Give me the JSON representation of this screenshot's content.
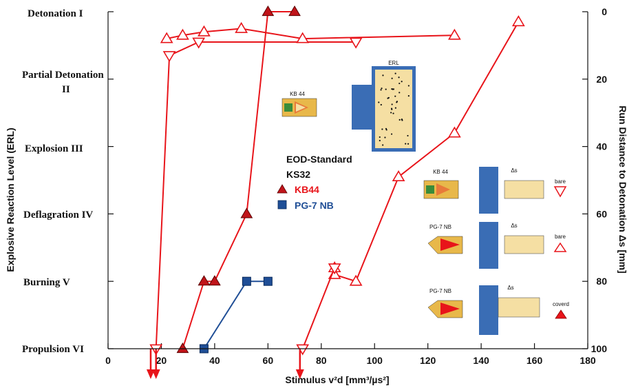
{
  "chart_data": {
    "type": "line",
    "title": "",
    "xlabel": "Stimulus v²d [mm³/µs²]",
    "ylabel_left": "Explosive Reaction Level (ERL)",
    "ylabel_right": "Run Distance to Detonation Δs [mm]",
    "xlim": [
      0,
      180
    ],
    "x_ticks": [
      0,
      20,
      40,
      60,
      80,
      100,
      120,
      140,
      160,
      180
    ],
    "ylim_right": [
      0,
      100
    ],
    "y_right_ticks": [
      0,
      20,
      40,
      60,
      80,
      100
    ],
    "y_right_inverted": true,
    "reaction_levels": [
      {
        "name": "Detonation",
        "roman": "I",
        "run_distance": 0
      },
      {
        "name": "Partial Detonation",
        "roman": "II",
        "run_distance": 20
      },
      {
        "name": "Explosion",
        "roman": "III",
        "run_distance": 40
      },
      {
        "name": "Deflagration",
        "roman": "IV",
        "run_distance": 60
      },
      {
        "name": "Burning",
        "roman": "V",
        "run_distance": 80
      },
      {
        "name": "Propulsion",
        "roman": "VI",
        "run_distance": 100
      }
    ],
    "legend": {
      "header": [
        "EOD-Standard",
        "KS32"
      ],
      "entries": [
        {
          "label": "KB44",
          "marker": "filled-triangle",
          "color": "#e8141a"
        },
        {
          "label": "PG-7 NB",
          "marker": "filled-square",
          "color": "#1f4e96"
        }
      ]
    },
    "series": [
      {
        "name": "KB44",
        "marker": "filled-triangle",
        "color": "#e8141a",
        "points": [
          [
            28,
            100
          ],
          [
            36,
            80
          ],
          [
            40,
            80
          ],
          [
            52,
            60
          ],
          [
            60,
            0
          ],
          [
            70,
            0
          ]
        ]
      },
      {
        "name": "PG-7 NB",
        "marker": "filled-square",
        "color": "#1f4e96",
        "points": [
          [
            36,
            100
          ],
          [
            52,
            80
          ],
          [
            60,
            80
          ]
        ]
      },
      {
        "name": "",
        "marker": "open-down-triangle",
        "color": "#e8141a",
        "points": [
          [
            18,
            100
          ],
          [
            23,
            13
          ],
          [
            34,
            9
          ],
          [
            93,
            9
          ]
        ]
      },
      {
        "name": "",
        "marker": "open-triangle",
        "color": "#e8141a",
        "points": [
          [
            22,
            8
          ],
          [
            28,
            7
          ],
          [
            36,
            6
          ],
          [
            50,
            5
          ],
          [
            73,
            8
          ],
          [
            130,
            7
          ]
        ]
      },
      {
        "name": "",
        "marker": "open-triangle",
        "color": "#e8141a",
        "points": [
          [
            85,
            76
          ],
          [
            85,
            78
          ],
          [
            93,
            80
          ],
          [
            109,
            49
          ],
          [
            130,
            36
          ],
          [
            154,
            3
          ]
        ]
      },
      {
        "name": "",
        "marker": "open-down-triangle",
        "color": "#e8141a",
        "points": [
          [
            73,
            100
          ],
          [
            85,
            76
          ]
        ]
      }
    ],
    "arrows": [
      {
        "x": 16
      },
      {
        "x": 18
      },
      {
        "x": 72
      }
    ],
    "inset_labels": {
      "erl": "ERL",
      "kb44": "KB 44",
      "kb44_right": "KB 44",
      "pg7_1": "PG-7 NB",
      "pg7_2": "PG-7 NB",
      "delta_s": "Δs",
      "bare_1": "bare",
      "bare_2": "bare",
      "covered": "coverd"
    }
  }
}
